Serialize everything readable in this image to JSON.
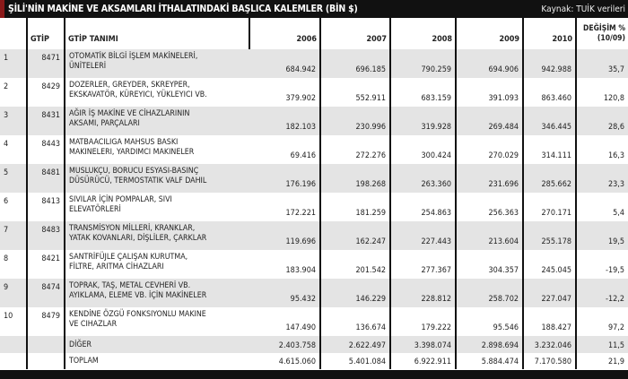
{
  "title": "ŞİLİ'NİN MAKİNE VE AKSAMLARI İTHALATINDAKİ BAŞLICA KALEMLER (BİN $)",
  "source": "Kaynak: TUİK verileri",
  "accent_color": "#8b1a1a",
  "headers": {
    "no": "",
    "gtip": "GTİP",
    "desc": "GTİP TANIMI",
    "y2006": "2006",
    "y2007": "2007",
    "y2008": "2008",
    "y2009": "2009",
    "y2010": "2010",
    "change1": "DEĞİŞİM %",
    "change2": "(10/09)"
  },
  "rows": [
    {
      "no": "1",
      "gtip": "8471",
      "l1": "OTOMATİK BİLGİ İŞLEM MAKİNELERİ,",
      "l2": "ÜNİTELERİ",
      "v": [
        "684.942",
        "696.185",
        "790.259",
        "694.906",
        "942.988",
        "35,7"
      ]
    },
    {
      "no": "2",
      "gtip": "8429",
      "l1": "DOZERLER, GREYDER, SKREYPER,",
      "l2": "EKSKAVATÖR, KÜREYICI, YÜKLEYICI VB.",
      "v": [
        "379.902",
        "552.911",
        "683.159",
        "391.093",
        "863.460",
        "120,8"
      ]
    },
    {
      "no": "3",
      "gtip": "8431",
      "l1": "AĞIR İŞ MAKİNE VE CİHAZLARININ",
      "l2": "AKSAMI, PARÇALARI",
      "v": [
        "182.103",
        "230.996",
        "319.928",
        "269.484",
        "346.445",
        "28,6"
      ]
    },
    {
      "no": "4",
      "gtip": "8443",
      "l1": "MATBAACILIGA MAHSUS BASKI",
      "l2": "MAKINELERI, YARDIMCI MAKINELER",
      "v": [
        "69.416",
        "272.276",
        "300.424",
        "270.029",
        "314.111",
        "16,3"
      ]
    },
    {
      "no": "5",
      "gtip": "8481",
      "l1": "MUSLUKÇU, BORUCU ESYASI-BASINÇ",
      "l2": "DÜSÜRÜCÜ, TERMOSTATIK VALF DAHIL",
      "v": [
        "176.196",
        "198.268",
        "263.360",
        "231.696",
        "285.662",
        "23,3"
      ]
    },
    {
      "no": "6",
      "gtip": "8413",
      "l1": "SIVILAR İÇİN POMPALAR, SIVI",
      "l2": "ELEVATÖRLERİ",
      "v": [
        "172.221",
        "181.259",
        "254.863",
        "256.363",
        "270.171",
        "5,4"
      ]
    },
    {
      "no": "7",
      "gtip": "8483",
      "l1": "TRANSMİSYON MİLLERİ, KRANKLAR,",
      "l2": "YATAK KOVANLARI, DİŞLİLER, ÇARKLAR",
      "v": [
        "119.696",
        "162.247",
        "227.443",
        "213.604",
        "255.178",
        "19,5"
      ]
    },
    {
      "no": "8",
      "gtip": "8421",
      "l1": "SANTRİFÜJLE ÇALIŞAN KURUTMA,",
      "l2": "FİLTRE, ARITMA CİHAZLARI",
      "v": [
        "183.904",
        "201.542",
        "277.367",
        "304.357",
        "245.045",
        "-19,5"
      ]
    },
    {
      "no": "9",
      "gtip": "8474",
      "l1": "TOPRAK, TAŞ, METAL CEVHERİ VB.",
      "l2": "AYIKLAMA, ELEME VB. İÇİN MAKİNELER",
      "v": [
        "95.432",
        "146.229",
        "228.812",
        "258.702",
        "227.047",
        "-12,2"
      ]
    },
    {
      "no": "10",
      "gtip": "8479",
      "l1": "KENDİNE ÖZGÜ FONKSIYONLU MAKINE",
      "l2": "VE CIHAZLAR",
      "v": [
        "147.490",
        "136.674",
        "179.222",
        "95.546",
        "188.427",
        "97,2"
      ]
    }
  ],
  "other": {
    "label": "DİĞER",
    "v": [
      "2.403.758",
      "2.622.497",
      "3.398.074",
      "2.898.694",
      "3.232.046",
      "11,5"
    ]
  },
  "total": {
    "label": "TOPLAM",
    "v": [
      "4.615.060",
      "5.401.084",
      "6.922.911",
      "5.884.474",
      "7.170.580",
      "21,9"
    ]
  }
}
